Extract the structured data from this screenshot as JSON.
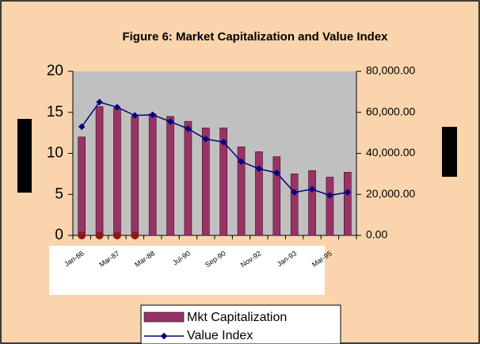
{
  "chart_data": {
    "type": "bar_line",
    "title": "Figure 6: Market Capitalization and Value Index",
    "categories": [
      "Jan-86",
      null,
      "Mar-87",
      null,
      "Mar-88",
      null,
      "Jul-90",
      null,
      "Sep-90",
      null,
      "Nov-92",
      null,
      "Jan-93",
      null,
      "Mar-95",
      null
    ],
    "series": [
      {
        "name": "Mkt Capitalization",
        "color": "#993366",
        "axis": "y",
        "values": [
          12,
          15.7,
          15.5,
          14.5,
          14.8,
          14.5,
          13.9,
          13.1,
          13.1,
          10.8,
          10.2,
          9.6,
          7.5,
          7.9,
          7.1,
          7.7
        ]
      },
      {
        "name": "Value Index",
        "color": "#000080",
        "axis": "y2",
        "values": [
          53000,
          65000,
          62500,
          58500,
          58800,
          55500,
          52000,
          47000,
          45500,
          36000,
          32500,
          30500,
          21000,
          22500,
          19500,
          21000
        ]
      }
    ],
    "ylim": [
      0,
      20
    ],
    "yticks": [
      0,
      5,
      10,
      15,
      20
    ],
    "y2lim": [
      0,
      80000
    ],
    "y2ticks": [
      {
        "value": 0,
        "label": "0.00"
      },
      {
        "value": 20000,
        "label": "20,000.00"
      },
      {
        "value": 40000,
        "label": "40,000.00"
      },
      {
        "value": 60000,
        "label": "60,000.00"
      },
      {
        "value": 80000,
        "label": "80,000.00"
      }
    ]
  }
}
